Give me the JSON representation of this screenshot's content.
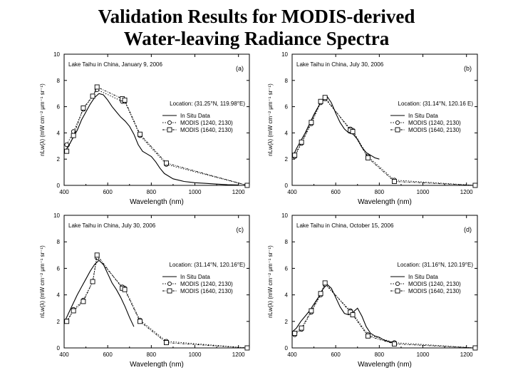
{
  "slide": {
    "title_line1": "Validation Results for MODIS-derived",
    "title_line2": "Water-leaving Radiance Spectra"
  },
  "chart_data": [
    {
      "type": "line",
      "panel": "(a)",
      "annotation": "Lake Taihu in China, January 9, 2006",
      "location": "Location: (31.25°N, 119.98°E)",
      "xlabel": "Wavelength (nm)",
      "ylabel": "nLw(λ) (mW cm⁻² μm⁻¹ sr⁻¹)",
      "xlim": [
        400,
        1250
      ],
      "ylim": [
        0,
        10
      ],
      "xticks": [
        400,
        600,
        800,
        1000,
        1200
      ],
      "yticks": [
        0,
        2,
        4,
        6,
        8,
        10
      ],
      "legend": [
        "In Situ Data",
        "MODIS (1240, 2130)",
        "MODIS (1640, 2130)"
      ],
      "series": [
        {
          "name": "In Situ Data",
          "x": [
            400,
            420,
            440,
            460,
            480,
            500,
            520,
            540,
            560,
            580,
            600,
            620,
            640,
            660,
            680,
            700,
            720,
            740,
            760,
            780,
            800,
            820,
            840,
            860,
            880,
            900,
            950,
            1000,
            1050,
            1100,
            1150,
            1200
          ],
          "y": [
            2.5,
            3.0,
            3.6,
            4.2,
            5.0,
            5.6,
            6.2,
            6.7,
            7.0,
            6.9,
            6.5,
            6.0,
            5.6,
            5.2,
            4.9,
            4.5,
            3.9,
            3.1,
            2.6,
            2.4,
            2.2,
            1.8,
            1.3,
            0.9,
            0.7,
            0.5,
            0.3,
            0.2,
            0.15,
            0.1,
            0.05,
            0.03
          ]
        },
        {
          "name": "MODIS (1240, 2130)",
          "x": [
            412,
            443,
            488,
            531,
            551,
            667,
            678,
            748,
            869,
            1240
          ],
          "y": [
            3.1,
            4.1,
            5.8,
            6.8,
            7.3,
            6.4,
            6.4,
            3.8,
            1.6,
            0.0
          ]
        },
        {
          "name": "MODIS (1640, 2130)",
          "x": [
            412,
            443,
            488,
            531,
            551,
            667,
            678,
            748,
            869,
            1240
          ],
          "y": [
            2.6,
            3.8,
            5.9,
            6.8,
            7.5,
            6.6,
            6.5,
            3.9,
            1.7,
            0.0
          ]
        }
      ]
    },
    {
      "type": "line",
      "panel": "(b)",
      "annotation": "Lake Taihu in China, July 30, 2006",
      "location": "Location: (31.14°N, 120.16 E)",
      "xlabel": "Wavelength (nm)",
      "ylabel": "nLw(λ) (mW cm⁻² μm⁻¹ sr⁻¹)",
      "xlim": [
        400,
        1250
      ],
      "ylim": [
        0,
        10
      ],
      "xticks": [
        400,
        600,
        800,
        1000,
        1200
      ],
      "yticks": [
        0,
        2,
        4,
        6,
        8,
        10
      ],
      "legend": [
        "In Situ Data",
        "MODIS (1240, 2130)",
        "MODIS (1640, 2130)"
      ],
      "series": [
        {
          "name": "In Situ Data",
          "x": [
            400,
            420,
            440,
            460,
            480,
            500,
            520,
            540,
            560,
            580,
            600,
            620,
            640,
            660,
            680,
            700,
            720,
            740,
            760,
            780,
            800
          ],
          "y": [
            2.1,
            2.8,
            3.4,
            4.0,
            4.7,
            5.4,
            6.0,
            6.5,
            6.8,
            6.3,
            5.5,
            4.8,
            4.3,
            4.0,
            3.9,
            3.5,
            2.9,
            2.5,
            2.3,
            2.1,
            2.0
          ]
        },
        {
          "name": "MODIS (1240, 2130)",
          "x": [
            412,
            443,
            488,
            531,
            551,
            667,
            678,
            748,
            869,
            1240
          ],
          "y": [
            2.2,
            3.2,
            4.7,
            6.3,
            6.6,
            4.3,
            4.2,
            2.2,
            0.4,
            0.0
          ]
        },
        {
          "name": "MODIS (1640, 2130)",
          "x": [
            412,
            443,
            488,
            531,
            551,
            667,
            678,
            748,
            869,
            1240
          ],
          "y": [
            2.3,
            3.3,
            4.8,
            6.4,
            6.7,
            4.2,
            4.1,
            2.1,
            0.3,
            0.0
          ]
        }
      ]
    },
    {
      "type": "line",
      "panel": "(c)",
      "annotation": "Lake Taihu in China, July 30, 2006",
      "location": "Location: (31.14°N, 120.16°E)",
      "xlabel": "Wavelength (nm)",
      "ylabel": "nLw(λ) (mW cm⁻² μm⁻¹ sr⁻¹)",
      "xlim": [
        400,
        1250
      ],
      "ylim": [
        0,
        10
      ],
      "xticks": [
        400,
        600,
        800,
        1000,
        1200
      ],
      "yticks": [
        0,
        2,
        4,
        6,
        8,
        10
      ],
      "legend": [
        "In Situ Data",
        "MODIS (1240, 2130)",
        "MODIS (1640, 2130)"
      ],
      "series": [
        {
          "name": "In Situ Data",
          "x": [
            400,
            420,
            440,
            460,
            480,
            500,
            520,
            540,
            560,
            580,
            600,
            620,
            640,
            660,
            680,
            700,
            720
          ],
          "y": [
            1.9,
            2.6,
            3.3,
            4.0,
            4.6,
            5.2,
            5.8,
            6.3,
            6.6,
            6.3,
            5.6,
            4.9,
            4.4,
            3.8,
            3.1,
            2.3,
            1.6
          ]
        },
        {
          "name": "MODIS (1240, 2130)",
          "x": [
            412,
            443,
            488,
            531,
            551,
            667,
            678,
            748,
            869,
            1240
          ],
          "y": [
            2.0,
            2.9,
            3.6,
            5.0,
            6.8,
            4.6,
            4.5,
            2.1,
            0.5,
            0.0
          ]
        },
        {
          "name": "MODIS (1640, 2130)",
          "x": [
            412,
            443,
            488,
            531,
            551,
            667,
            678,
            748,
            869,
            1240
          ],
          "y": [
            2.0,
            2.8,
            3.5,
            5.0,
            7.0,
            4.5,
            4.4,
            2.0,
            0.4,
            0.0
          ]
        }
      ]
    },
    {
      "type": "line",
      "panel": "(d)",
      "annotation": "Lake Taihu in China, October 15, 2006",
      "location": "Location: (31.16°N, 120.19°E)",
      "xlabel": "Wavelength (nm)",
      "ylabel": "nLw(λ) (mW cm⁻² μm⁻¹ sr⁻¹)",
      "xlim": [
        400,
        1250
      ],
      "ylim": [
        0,
        10
      ],
      "xticks": [
        400,
        600,
        800,
        1000,
        1200
      ],
      "yticks": [
        0,
        2,
        4,
        6,
        8,
        10
      ],
      "legend": [
        "In Situ Data",
        "MODIS (1240, 2130)",
        "MODIS (1640, 2130)"
      ],
      "series": [
        {
          "name": "In Situ Data",
          "x": [
            400,
            420,
            440,
            460,
            480,
            500,
            520,
            540,
            560,
            580,
            600,
            620,
            640,
            660,
            680,
            700,
            720,
            740,
            760,
            780,
            800,
            820,
            840,
            860
          ],
          "y": [
            1.2,
            1.5,
            2.0,
            2.4,
            2.8,
            3.3,
            3.8,
            4.4,
            4.8,
            4.5,
            3.8,
            3.1,
            2.6,
            2.5,
            2.7,
            3.0,
            2.4,
            1.6,
            1.1,
            0.9,
            0.8,
            0.6,
            0.5,
            0.4
          ]
        },
        {
          "name": "MODIS (1240, 2130)",
          "x": [
            412,
            443,
            488,
            531,
            551,
            667,
            678,
            748,
            869,
            1240
          ],
          "y": [
            1.0,
            1.4,
            2.7,
            4.0,
            4.8,
            2.8,
            2.6,
            1.0,
            0.4,
            0.0
          ]
        },
        {
          "name": "MODIS (1640, 2130)",
          "x": [
            412,
            443,
            488,
            531,
            551,
            667,
            678,
            748,
            869,
            1240
          ],
          "y": [
            1.1,
            1.5,
            2.8,
            4.1,
            4.9,
            2.7,
            2.5,
            0.9,
            0.3,
            0.0
          ]
        }
      ]
    }
  ]
}
